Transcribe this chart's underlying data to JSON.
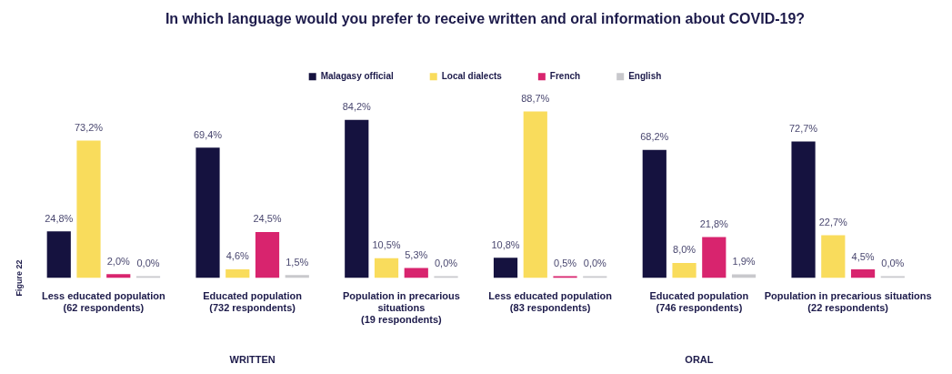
{
  "chart_data": {
    "type": "bar",
    "title": "In which language would you prefer to receive written and oral information about COVID-19?",
    "categories": [
      "Less educated population\n(62 respondents)",
      "Educated population\n(732 respondents)",
      "Population in precarious\nsituations\n(19 respondents)",
      "Less educated population\n(83 respondents)",
      "Educated population\n(746 respondents)",
      "Population in precarious situations\n(22 respondents)"
    ],
    "series": [
      {
        "name": "Malagasy official",
        "color": "#15123f",
        "values": [
          24.8,
          69.4,
          84.2,
          10.8,
          68.2,
          72.7
        ],
        "value_labels": [
          "24,8%",
          "69,4%",
          "84,2%",
          "10,8%",
          "68,2%",
          "72,7%"
        ]
      },
      {
        "name": "Local dialects",
        "color": "#f9dc5c",
        "values": [
          73.2,
          4.6,
          10.5,
          88.7,
          8.0,
          22.7
        ],
        "value_labels": [
          "73,2%",
          "4,6%",
          "10,5%",
          "88,7%",
          "8,0%",
          "22,7%"
        ]
      },
      {
        "name": "French",
        "color": "#d8246e",
        "values": [
          2.0,
          24.5,
          5.3,
          0.5,
          21.8,
          4.5
        ],
        "value_labels": [
          "2,0%",
          "24,5%",
          "5,3%",
          "0,5%",
          "21,8%",
          "4,5%"
        ]
      },
      {
        "name": "English",
        "color": "#c8c8cc",
        "values": [
          0.0,
          1.5,
          0.0,
          0.0,
          1.9,
          0.0
        ],
        "value_labels": [
          "0,0%",
          "1,5%",
          "0,0%",
          "0,0%",
          "1,9%",
          "0,0%"
        ]
      }
    ],
    "annotations": [
      "WRITTEN",
      "ORAL",
      "Figure 22"
    ],
    "legend": "top",
    "grid": false
  }
}
